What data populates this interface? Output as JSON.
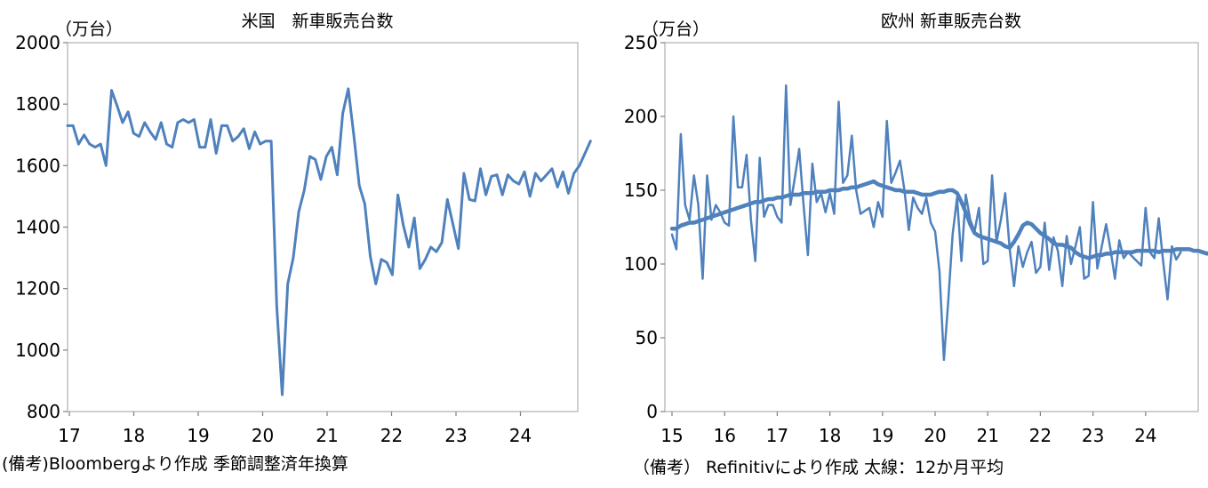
{
  "colors": {
    "series": "#4f81bd",
    "frame": "#bfbfbf",
    "axis": "#808080"
  },
  "chart_data": [
    {
      "type": "line",
      "title": "米国　新車販売台数",
      "unit": "（万台）",
      "note": "(備考)Bloombergより作成 季節調整済年換算",
      "ylim": [
        800,
        2000
      ],
      "yticks": [
        "2000",
        "1800",
        "1600",
        "1400",
        "1200",
        "1000",
        "800"
      ],
      "xticks": [
        "17",
        "18",
        "19",
        "20",
        "21",
        "22",
        "23",
        "24"
      ],
      "grid": false,
      "series": [
        {
          "values": [
            1730,
            1730,
            1670,
            1700,
            1670,
            1660,
            1670,
            1600,
            1845,
            1795,
            1740,
            1775,
            1705,
            1695,
            1740,
            1710,
            1685,
            1740,
            1670,
            1660,
            1740,
            1750,
            1740,
            1750,
            1660,
            1660,
            1750,
            1640,
            1730,
            1730,
            1680,
            1695,
            1720,
            1655,
            1710,
            1670,
            1680,
            1680,
            1145,
            855,
            1215,
            1300,
            1450,
            1520,
            1630,
            1620,
            1555,
            1630,
            1660,
            1570,
            1770,
            1850,
            1700,
            1535,
            1475,
            1305,
            1215,
            1295,
            1285,
            1245,
            1505,
            1405,
            1335,
            1430,
            1265,
            1295,
            1335,
            1320,
            1350,
            1490,
            1410,
            1330,
            1575,
            1490,
            1485,
            1590,
            1505,
            1565,
            1570,
            1505,
            1570,
            1550,
            1540,
            1580,
            1500,
            1575,
            1550,
            1570,
            1590,
            1530,
            1580,
            1510,
            1575,
            1600,
            1640,
            1680
          ]
        }
      ]
    },
    {
      "type": "line",
      "title": "欧州 新車販売台数",
      "unit": "（万台）",
      "note": "（備考） Refinitivにより作成 太線：12か月平均",
      "ylim": [
        0,
        250
      ],
      "yticks": [
        "250",
        "200",
        "150",
        "100",
        "50",
        "0"
      ],
      "xticks": [
        "15",
        "16",
        "17",
        "18",
        "19",
        "20",
        "21",
        "22",
        "23",
        "24"
      ],
      "grid": false,
      "series": [
        {
          "values": [
            120,
            110,
            188,
            140,
            130,
            160,
            140,
            90,
            160,
            130,
            140,
            135,
            128,
            126,
            200,
            152,
            152,
            174,
            130,
            102,
            172,
            132,
            140,
            140,
            132,
            128,
            221,
            140,
            158,
            178,
            140,
            106,
            168,
            142,
            148,
            135,
            148,
            134,
            210,
            155,
            160,
            187,
            150,
            134,
            136,
            138,
            125,
            142,
            132,
            197,
            155,
            162,
            170,
            150,
            123,
            145,
            138,
            134,
            145,
            128,
            122,
            95,
            35,
            75,
            120,
            145,
            102,
            147,
            130,
            122,
            138,
            100,
            102,
            160,
            115,
            130,
            148,
            110,
            85,
            112,
            98,
            108,
            115,
            94,
            98,
            128,
            96,
            118,
            109,
            85,
            119,
            100,
            112,
            125,
            90,
            92,
            142,
            97,
            112,
            127,
            110,
            90,
            116,
            104,
            108,
            105,
            102,
            99,
            138,
            108,
            104,
            131,
            102,
            76,
            112,
            103,
            108
          ]
        },
        {
          "values": [
            124,
            124,
            126,
            127,
            128,
            128,
            129,
            130,
            131,
            132,
            133,
            134,
            135,
            136,
            137,
            138,
            139,
            140,
            141,
            142,
            142,
            143,
            144,
            144,
            145,
            145,
            146,
            147,
            147,
            147,
            148,
            148,
            148,
            149,
            149,
            149,
            150,
            150,
            150,
            151,
            151,
            152,
            152,
            153,
            154,
            155,
            156,
            154,
            153,
            152,
            151,
            150,
            150,
            149,
            149,
            149,
            148,
            147,
            147,
            147,
            148,
            149,
            149,
            150,
            150,
            148,
            142,
            135,
            127,
            121,
            119,
            118,
            117,
            116,
            115,
            114,
            112,
            111,
            115,
            120,
            126,
            128,
            127,
            124,
            121,
            119,
            117,
            114,
            113,
            113,
            112,
            111,
            108,
            106,
            105,
            104,
            105,
            106,
            106,
            107,
            107,
            108,
            108,
            108,
            108,
            108,
            109,
            109,
            109,
            109,
            109,
            108,
            109,
            109,
            109,
            110,
            110,
            110,
            110,
            109,
            109,
            108,
            107,
            108
          ]
        }
      ]
    }
  ]
}
